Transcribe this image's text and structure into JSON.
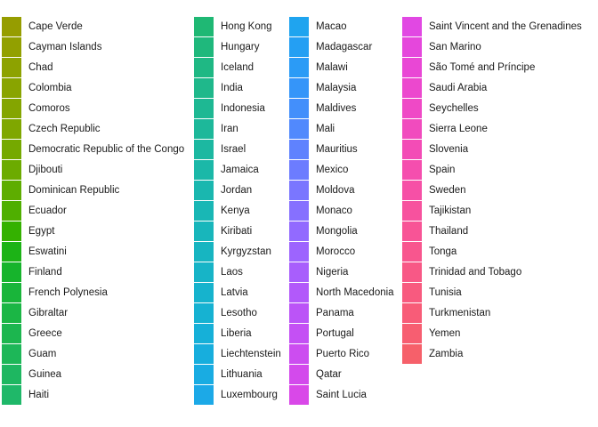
{
  "chart_data": {
    "type": "legend",
    "title": "",
    "legend": {
      "columns": [
        {
          "entries": [
            {
              "label": "Cape Verde",
              "color": "#969D00"
            },
            {
              "label": "Cayman Islands",
              "color": "#92A000"
            },
            {
              "label": "Chad",
              "color": "#8DA200"
            },
            {
              "label": "Colombia",
              "color": "#89A400"
            },
            {
              "label": "Comoros",
              "color": "#84A500"
            },
            {
              "label": "Czech Republic",
              "color": "#7FA700"
            },
            {
              "label": "Democratic Republic of the Congo",
              "color": "#75A900"
            },
            {
              "label": "Djibouti",
              "color": "#6CAB00"
            },
            {
              "label": "Dominican Republic",
              "color": "#5EAD00"
            },
            {
              "label": "Ecuador",
              "color": "#4FAF00"
            },
            {
              "label": "Egypt",
              "color": "#34B100"
            },
            {
              "label": "Eswatini",
              "color": "#1CB316"
            },
            {
              "label": "Finland",
              "color": "#16B42C"
            },
            {
              "label": "French Polynesia",
              "color": "#19B53A"
            },
            {
              "label": "Gibraltar",
              "color": "#1BB645"
            },
            {
              "label": "Greece",
              "color": "#1CB64F"
            },
            {
              "label": "Guam",
              "color": "#1DB758"
            },
            {
              "label": "Guinea",
              "color": "#1EB761"
            },
            {
              "label": "Haiti",
              "color": "#1FB869"
            }
          ]
        },
        {
          "entries": [
            {
              "label": "Hong Kong",
              "color": "#1FB874"
            },
            {
              "label": "Hungary",
              "color": "#1FB87C"
            },
            {
              "label": "Iceland",
              "color": "#1FB884"
            },
            {
              "label": "India",
              "color": "#1FB88B"
            },
            {
              "label": "Indonesia",
              "color": "#1EB893"
            },
            {
              "label": "Iran",
              "color": "#1DB89A"
            },
            {
              "label": "Israel",
              "color": "#1CB8A1"
            },
            {
              "label": "Jamaica",
              "color": "#1BB8A8"
            },
            {
              "label": "Jordan",
              "color": "#1AB7AF"
            },
            {
              "label": "Kenya",
              "color": "#19B7B5"
            },
            {
              "label": "Kiribati",
              "color": "#18B6BB"
            },
            {
              "label": "Kyrgyzstan",
              "color": "#17B5C1"
            },
            {
              "label": "Laos",
              "color": "#17B4C7"
            },
            {
              "label": "Latvia",
              "color": "#16B3CD"
            },
            {
              "label": "Lesotho",
              "color": "#16B2D2"
            },
            {
              "label": "Liberia",
              "color": "#16B0D8"
            },
            {
              "label": "Liechtenstein",
              "color": "#17AEDD"
            },
            {
              "label": "Lithuania",
              "color": "#19ACE2"
            },
            {
              "label": "Luxembourg",
              "color": "#1CA9E7"
            }
          ]
        },
        {
          "entries": [
            {
              "label": "Macao",
              "color": "#1FA4EF"
            },
            {
              "label": "Madagascar",
              "color": "#249FF3"
            },
            {
              "label": "Malawi",
              "color": "#2B9BF6"
            },
            {
              "label": "Malaysia",
              "color": "#3595F9"
            },
            {
              "label": "Maldives",
              "color": "#438FFB"
            },
            {
              "label": "Mali",
              "color": "#5189FD"
            },
            {
              "label": "Mauritius",
              "color": "#5F82FE"
            },
            {
              "label": "Mexico",
              "color": "#6C7CFF"
            },
            {
              "label": "Moldova",
              "color": "#7A76FF"
            },
            {
              "label": "Monaco",
              "color": "#8670FF"
            },
            {
              "label": "Mongolia",
              "color": "#926AFF"
            },
            {
              "label": "Morocco",
              "color": "#9D64FE"
            },
            {
              "label": "Nigeria",
              "color": "#A85EFC"
            },
            {
              "label": "North Macedonia",
              "color": "#B259FA"
            },
            {
              "label": "Panama",
              "color": "#BB54F7"
            },
            {
              "label": "Portugal",
              "color": "#C450F4"
            },
            {
              "label": "Puerto Rico",
              "color": "#CC4DF0"
            },
            {
              "label": "Qatar",
              "color": "#D34AEC"
            },
            {
              "label": "Saint Lucia",
              "color": "#D948E8"
            }
          ]
        },
        {
          "entries": [
            {
              "label": "Saint Vincent and the Grenadines",
              "color": "#E148E3"
            },
            {
              "label": "San Marino",
              "color": "#E547DC"
            },
            {
              "label": "São Tomé and Príncipe",
              "color": "#E947D5"
            },
            {
              "label": "Saudi Arabia",
              "color": "#EC48CE"
            },
            {
              "label": "Seychelles",
              "color": "#EF49C6"
            },
            {
              "label": "Sierra Leone",
              "color": "#F14BBE"
            },
            {
              "label": "Slovenia",
              "color": "#F34CB6"
            },
            {
              "label": "Spain",
              "color": "#F54EAE"
            },
            {
              "label": "Sweden",
              "color": "#F650A6"
            },
            {
              "label": "Tajikistan",
              "color": "#F7529E"
            },
            {
              "label": "Thailand",
              "color": "#F85496"
            },
            {
              "label": "Tonga",
              "color": "#F8568E"
            },
            {
              "label": "Trinidad and Tobago",
              "color": "#F85886"
            },
            {
              "label": "Tunisia",
              "color": "#F85A7F"
            },
            {
              "label": "Turkmenistan",
              "color": "#F85C78"
            },
            {
              "label": "Yemen",
              "color": "#F75E71"
            },
            {
              "label": "Zambia",
              "color": "#F6606A"
            }
          ]
        }
      ]
    }
  }
}
